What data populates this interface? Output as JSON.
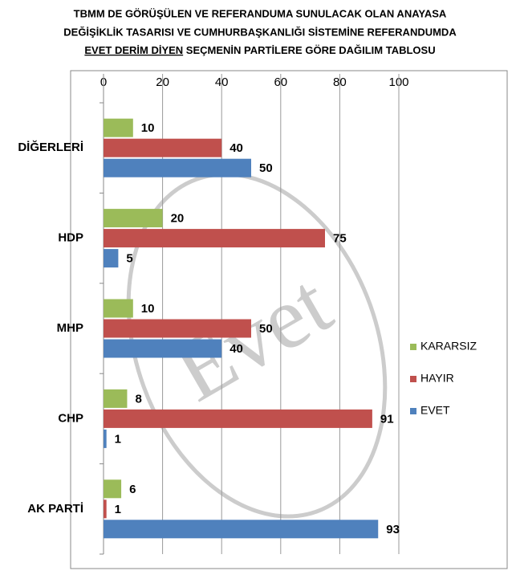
{
  "chart_data": {
    "type": "bar",
    "orientation": "horizontal",
    "title_lines": [
      "TBMM DE GÖRÜŞÜLEN VE REFERANDUMA SUNULACAK OLAN ANAYASA",
      "DEĞİŞİKLİK TASARISI VE CUMHURBAŞKANLIĞI SİSTEMİNE REFERANDUMDA"
    ],
    "title_underlined": "EVET DERİM DİYEN",
    "title_rest": "SEÇMENİN PARTİLERE GÖRE DAĞILIM TABLOSU",
    "watermark": "Evet",
    "categories": [
      "DİĞERLERİ",
      "HDP",
      "MHP",
      "CHP",
      "AK PARTİ"
    ],
    "series": [
      {
        "name": "KARARSIZ",
        "color": "#9bbb59",
        "values": [
          10,
          20,
          10,
          8,
          6
        ]
      },
      {
        "name": "HAYIR",
        "color": "#c0504d",
        "values": [
          40,
          75,
          50,
          91,
          1
        ]
      },
      {
        "name": "EVET",
        "color": "#4f81bd",
        "values": [
          50,
          5,
          40,
          1,
          93
        ]
      }
    ],
    "xlim": [
      0,
      100
    ],
    "xticks": [
      0,
      20,
      40,
      60,
      80,
      100
    ],
    "grid": true,
    "legend": "right"
  }
}
